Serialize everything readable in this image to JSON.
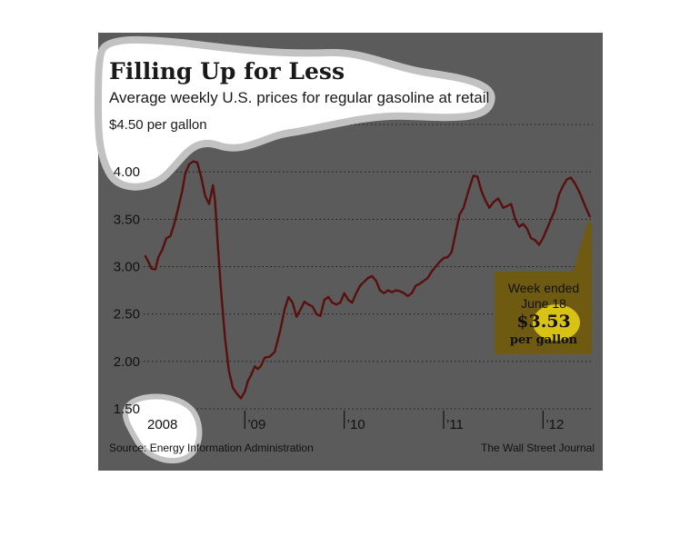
{
  "chart_data": {
    "type": "line",
    "title": "Filling Up for Less",
    "subtitle": "Average weekly U.S. prices for regular gasoline at retail",
    "y_unit_label": "$4.50 per gallon",
    "ylim": [
      1.5,
      4.5
    ],
    "xlim": [
      2008.0,
      2012.5
    ],
    "y_ticks": [
      {
        "value": 4.5,
        "label": ""
      },
      {
        "value": 4.0,
        "label": "4.00"
      },
      {
        "value": 3.5,
        "label": "3.50"
      },
      {
        "value": 3.0,
        "label": "3.00"
      },
      {
        "value": 2.5,
        "label": "2.50"
      },
      {
        "value": 2.0,
        "label": "2.00"
      },
      {
        "value": 1.5,
        "label": "1.50"
      }
    ],
    "x_ticks": [
      {
        "value": 2008.0,
        "label": "2008"
      },
      {
        "value": 2009.0,
        "label": "’09"
      },
      {
        "value": 2010.0,
        "label": "’10"
      },
      {
        "value": 2011.0,
        "label": "’11"
      },
      {
        "value": 2012.0,
        "label": "’12"
      }
    ],
    "grid": true,
    "series": [
      {
        "name": "",
        "color": "#5a0f0f",
        "points": [
          [
            2008.0,
            3.11
          ],
          [
            2008.03,
            3.05
          ],
          [
            2008.06,
            2.98
          ],
          [
            2008.1,
            2.97
          ],
          [
            2008.13,
            3.1
          ],
          [
            2008.17,
            3.18
          ],
          [
            2008.21,
            3.3
          ],
          [
            2008.25,
            3.32
          ],
          [
            2008.29,
            3.45
          ],
          [
            2008.33,
            3.62
          ],
          [
            2008.37,
            3.8
          ],
          [
            2008.4,
            3.98
          ],
          [
            2008.44,
            4.08
          ],
          [
            2008.48,
            4.11
          ],
          [
            2008.52,
            4.1
          ],
          [
            2008.56,
            3.95
          ],
          [
            2008.6,
            3.75
          ],
          [
            2008.64,
            3.66
          ],
          [
            2008.68,
            3.86
          ],
          [
            2008.7,
            3.7
          ],
          [
            2008.73,
            3.2
          ],
          [
            2008.76,
            2.75
          ],
          [
            2008.8,
            2.25
          ],
          [
            2008.84,
            1.9
          ],
          [
            2008.88,
            1.72
          ],
          [
            2008.92,
            1.66
          ],
          [
            2008.96,
            1.61
          ],
          [
            2009.0,
            1.68
          ],
          [
            2009.03,
            1.79
          ],
          [
            2009.06,
            1.85
          ],
          [
            2009.1,
            1.95
          ],
          [
            2009.13,
            1.92
          ],
          [
            2009.16,
            1.95
          ],
          [
            2009.2,
            2.04
          ],
          [
            2009.25,
            2.05
          ],
          [
            2009.3,
            2.1
          ],
          [
            2009.35,
            2.3
          ],
          [
            2009.4,
            2.55
          ],
          [
            2009.44,
            2.68
          ],
          [
            2009.48,
            2.62
          ],
          [
            2009.52,
            2.47
          ],
          [
            2009.56,
            2.55
          ],
          [
            2009.6,
            2.63
          ],
          [
            2009.64,
            2.6
          ],
          [
            2009.68,
            2.58
          ],
          [
            2009.72,
            2.5
          ],
          [
            2009.76,
            2.48
          ],
          [
            2009.8,
            2.65
          ],
          [
            2009.84,
            2.68
          ],
          [
            2009.88,
            2.62
          ],
          [
            2009.92,
            2.6
          ],
          [
            2009.96,
            2.62
          ],
          [
            2010.0,
            2.72
          ],
          [
            2010.04,
            2.65
          ],
          [
            2010.08,
            2.62
          ],
          [
            2010.12,
            2.72
          ],
          [
            2010.16,
            2.8
          ],
          [
            2010.2,
            2.84
          ],
          [
            2010.24,
            2.88
          ],
          [
            2010.28,
            2.9
          ],
          [
            2010.32,
            2.85
          ],
          [
            2010.36,
            2.75
          ],
          [
            2010.4,
            2.72
          ],
          [
            2010.44,
            2.75
          ],
          [
            2010.48,
            2.73
          ],
          [
            2010.52,
            2.75
          ],
          [
            2010.56,
            2.74
          ],
          [
            2010.6,
            2.72
          ],
          [
            2010.64,
            2.69
          ],
          [
            2010.68,
            2.72
          ],
          [
            2010.72,
            2.8
          ],
          [
            2010.76,
            2.82
          ],
          [
            2010.8,
            2.85
          ],
          [
            2010.84,
            2.88
          ],
          [
            2010.88,
            2.95
          ],
          [
            2010.92,
            3.0
          ],
          [
            2010.96,
            3.05
          ],
          [
            2011.0,
            3.09
          ],
          [
            2011.04,
            3.1
          ],
          [
            2011.08,
            3.15
          ],
          [
            2011.12,
            3.35
          ],
          [
            2011.16,
            3.55
          ],
          [
            2011.2,
            3.62
          ],
          [
            2011.25,
            3.8
          ],
          [
            2011.3,
            3.96
          ],
          [
            2011.34,
            3.95
          ],
          [
            2011.38,
            3.8
          ],
          [
            2011.42,
            3.7
          ],
          [
            2011.46,
            3.62
          ],
          [
            2011.5,
            3.68
          ],
          [
            2011.55,
            3.72
          ],
          [
            2011.6,
            3.62
          ],
          [
            2011.64,
            3.64
          ],
          [
            2011.68,
            3.66
          ],
          [
            2011.72,
            3.5
          ],
          [
            2011.76,
            3.42
          ],
          [
            2011.8,
            3.45
          ],
          [
            2011.84,
            3.4
          ],
          [
            2011.88,
            3.3
          ],
          [
            2011.92,
            3.28
          ],
          [
            2011.96,
            3.23
          ],
          [
            2012.0,
            3.3
          ],
          [
            2012.04,
            3.4
          ],
          [
            2012.08,
            3.5
          ],
          [
            2012.12,
            3.6
          ],
          [
            2012.16,
            3.76
          ],
          [
            2012.2,
            3.85
          ],
          [
            2012.24,
            3.92
          ],
          [
            2012.28,
            3.94
          ],
          [
            2012.32,
            3.88
          ],
          [
            2012.36,
            3.8
          ],
          [
            2012.4,
            3.7
          ],
          [
            2012.44,
            3.6
          ],
          [
            2012.47,
            3.53
          ]
        ]
      }
    ],
    "callout": {
      "line1": "Week ended",
      "line2": "June 18",
      "value": "$3.53",
      "unit": "per gallon",
      "anchor_x": 2012.47,
      "anchor_y": 3.53
    },
    "source": "Source: Energy Information Administration",
    "credit": "The Wall Street Journal",
    "colors": {
      "panel_bg": "#5b5b5b",
      "line": "#5a0f0f",
      "grid": "#1c1c1c",
      "callout_bg": "#6e5a10",
      "highlight": "#d8c216"
    }
  }
}
